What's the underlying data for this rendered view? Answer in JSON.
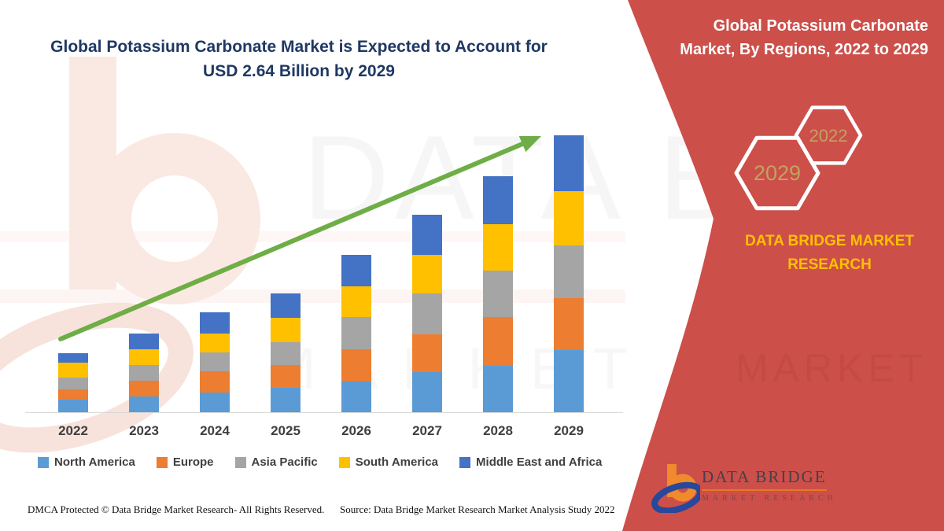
{
  "page": {
    "title": "Global Potassium Carbonate Market is Expected to Account for USD 2.64 Billion by 2029",
    "title_line1": "Global Potassium Carbonate Market is Expected to Account for",
    "title_line2": "USD 2.64 Billion by 2029"
  },
  "side_panel": {
    "heading_line1": "Global Potassium Carbonate",
    "heading_line2": "Market, By Regions, 2022 to 2029",
    "badge_large": "2029",
    "badge_small": "2022",
    "caption": "DATA BRIDGE MARKET RESEARCH",
    "panel_color": "#CC4F4A",
    "caption_color": "#FFC000",
    "badge_text_color": "#C2A25F"
  },
  "brand_logo": {
    "name": "DATA BRIDGE",
    "subtitle": "MARKET RESEARCH"
  },
  "watermark": {
    "line1": "DATA BRIDGE",
    "line2": "MARKET RESEARCH"
  },
  "footer": {
    "left": "DMCA Protected © Data Bridge Market Research- All Rights Reserved.",
    "right": "Source: Data Bridge Market Research Market Analysis Study 2022"
  },
  "chart_data": {
    "type": "bar",
    "stacked": true,
    "title": "Global Potassium Carbonate Market, By Regions, 2022 to 2029",
    "unit": "USD Billion",
    "categories": [
      "2022",
      "2023",
      "2024",
      "2025",
      "2026",
      "2027",
      "2028",
      "2029"
    ],
    "series": [
      {
        "name": "North America",
        "color": "#5B9BD5",
        "values": [
          0.12,
          0.15,
          0.19,
          0.23,
          0.29,
          0.38,
          0.44,
          0.59
        ]
      },
      {
        "name": "Europe",
        "color": "#ED7D31",
        "values": [
          0.1,
          0.15,
          0.2,
          0.22,
          0.31,
          0.36,
          0.47,
          0.5
        ]
      },
      {
        "name": "Asia Pacific",
        "color": "#A5A5A5",
        "values": [
          0.11,
          0.15,
          0.18,
          0.22,
          0.31,
          0.39,
          0.44,
          0.5
        ]
      },
      {
        "name": "South America",
        "color": "#FFC000",
        "values": [
          0.14,
          0.15,
          0.18,
          0.23,
          0.29,
          0.37,
          0.44,
          0.52
        ]
      },
      {
        "name": "Middle East and Africa",
        "color": "#4472C4",
        "values": [
          0.09,
          0.15,
          0.2,
          0.23,
          0.3,
          0.38,
          0.46,
          0.53
        ]
      }
    ],
    "totals_estimated": [
      0.56,
      0.75,
      0.95,
      1.13,
      1.5,
      1.88,
      2.25,
      2.64
    ],
    "ylim": [
      0,
      2.64
    ],
    "grid": false,
    "legend_position": "bottom",
    "annotations": [
      "green upward trend arrow from 2022 to 2029"
    ],
    "arrow_color": "#6FAE46"
  }
}
